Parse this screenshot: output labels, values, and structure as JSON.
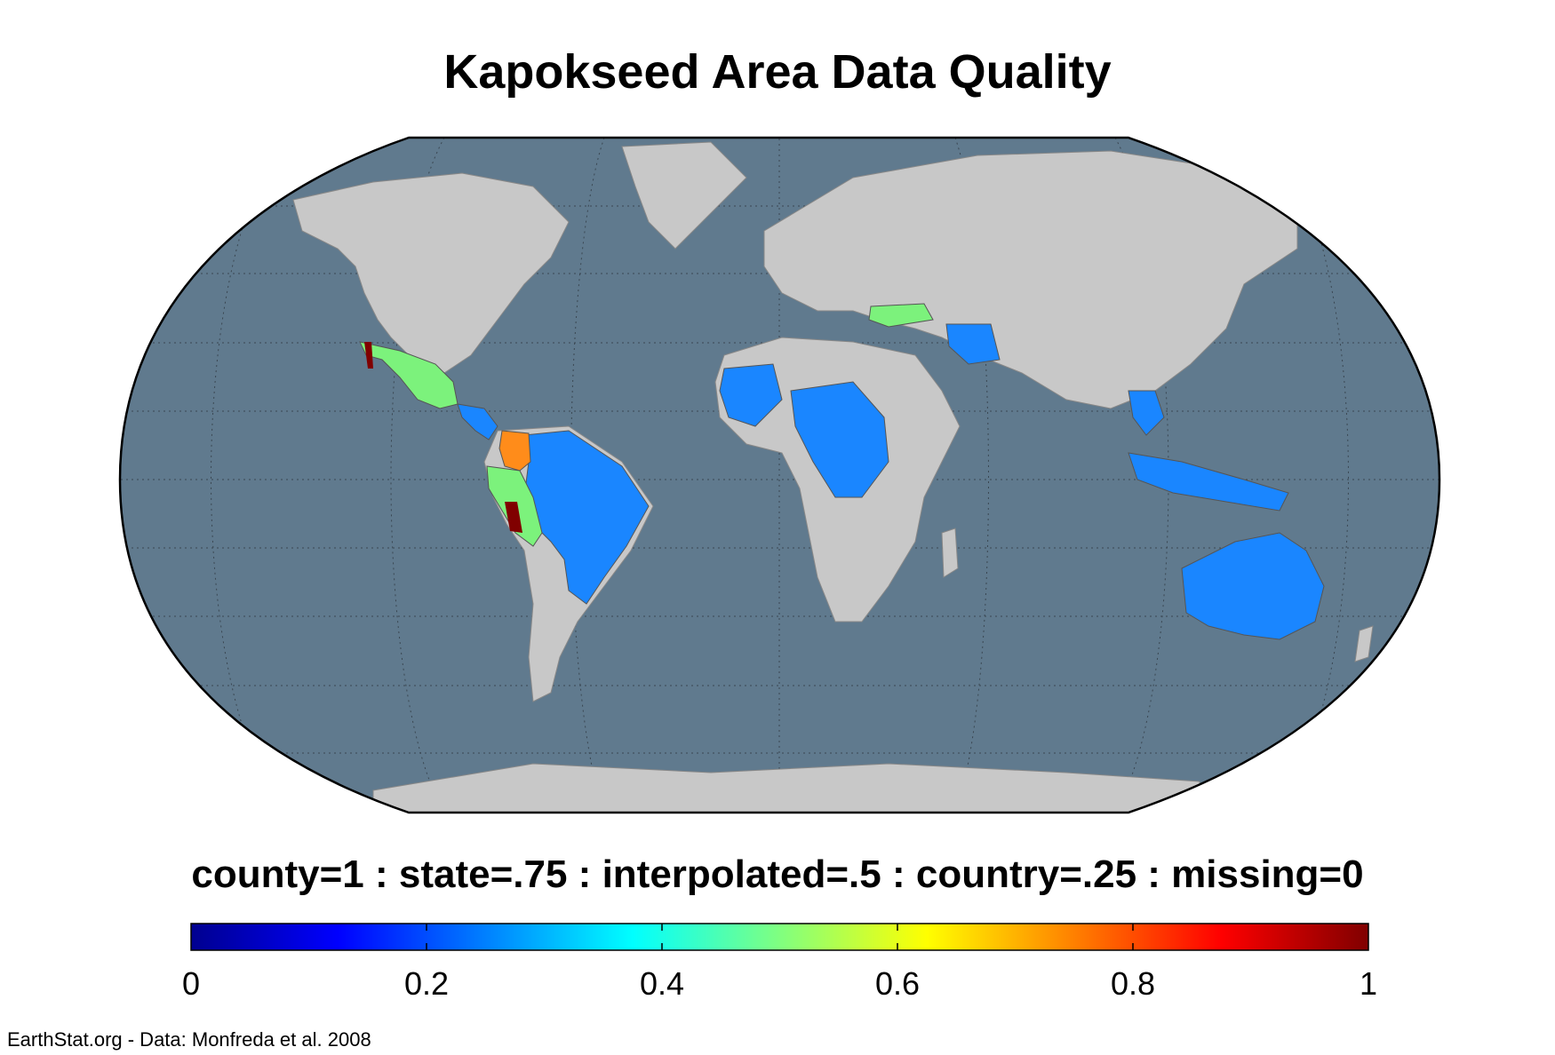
{
  "title": "Kapokseed Area Data Quality",
  "legend_caption": "county=1 : state=.75 : interpolated=.5 : country=.25 : missing=0",
  "footer": "EarthStat.org - Data: Monfreda et al. 2008",
  "colors": {
    "ocean": "#607a8e",
    "land_missing": "#c8c8c8",
    "country": "#1a86ff",
    "interpolated": "#7cf27c",
    "state": "#ff6a00",
    "county": "#800000"
  },
  "colorbar": {
    "min": 0,
    "max": 1,
    "ticks": [
      {
        "value": 0,
        "label": "0"
      },
      {
        "value": 0.2,
        "label": "0.2"
      },
      {
        "value": 0.4,
        "label": "0.4"
      },
      {
        "value": 0.6,
        "label": "0.6"
      },
      {
        "value": 0.8,
        "label": "0.8"
      },
      {
        "value": 1,
        "label": "1"
      }
    ],
    "stops": [
      "#00008f",
      "#0000ff",
      "#0080ff",
      "#00ffff",
      "#80ff80",
      "#ffff00",
      "#ff8000",
      "#ff0000",
      "#800000"
    ]
  }
}
